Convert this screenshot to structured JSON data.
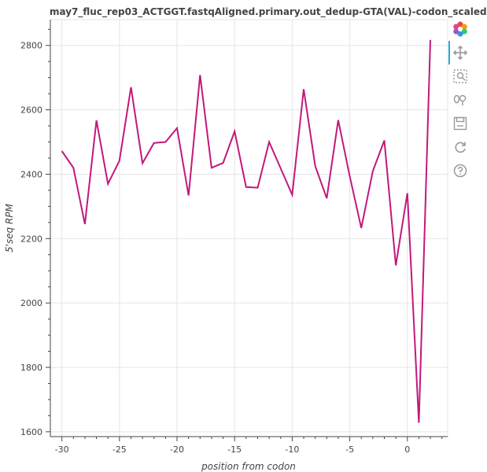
{
  "title": "may7_fluc_rep03_ACTGGT.fastqAligned.primary.out_dedup-GTA(VAL)-codon_scaled",
  "toolbar": {
    "tools": [
      {
        "name": "logo-icon"
      },
      {
        "name": "pan-icon",
        "active": true
      },
      {
        "name": "box-zoom-icon"
      },
      {
        "name": "wheel-zoom-icon"
      },
      {
        "name": "save-icon"
      },
      {
        "name": "reset-icon"
      },
      {
        "name": "help-icon"
      }
    ]
  },
  "chart_data": {
    "type": "line",
    "xlabel": "position from codon",
    "ylabel": "5'seq RPM",
    "xlim": [
      -31,
      3.5
    ],
    "ylim": [
      1585,
      2880
    ],
    "xticks": [
      -30,
      -25,
      -20,
      -15,
      -10,
      -5,
      0
    ],
    "yticks": [
      1600,
      1800,
      2000,
      2200,
      2400,
      2600,
      2800
    ],
    "grid": true,
    "series": [
      {
        "color": "#c2187c",
        "x": [
          -30,
          -29,
          -28,
          -27,
          -26,
          -25,
          -24,
          -23,
          -22,
          -21,
          -20,
          -19,
          -18,
          -17,
          -16,
          -15,
          -14,
          -13,
          -12,
          -11,
          -10,
          -9,
          -8,
          -7,
          -6,
          -5,
          -4,
          -3,
          -2,
          -1,
          0,
          1,
          2
        ],
        "y": [
          2472,
          2420,
          2245,
          2567,
          2370,
          2442,
          2670,
          2434,
          2497,
          2500,
          2543,
          2334,
          2708,
          2420,
          2435,
          2533,
          2360,
          2358,
          2500,
          2418,
          2336,
          2664,
          2425,
          2325,
          2568,
          2393,
          2233,
          2410,
          2505,
          2117,
          2341,
          1628,
          2817
        ]
      }
    ]
  }
}
